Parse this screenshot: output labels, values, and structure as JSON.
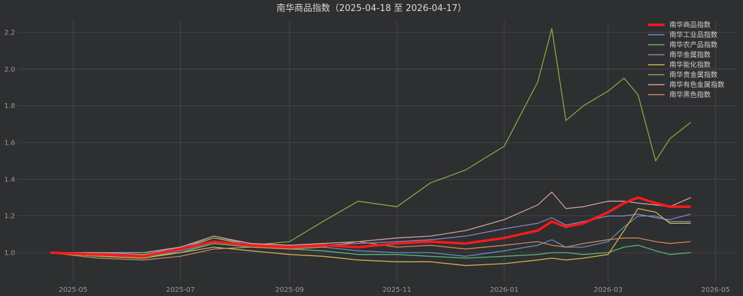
{
  "chart_data": {
    "type": "line",
    "title": "南华商品指数（2025-04-18 至 2026-04-17）",
    "xlabel": "",
    "ylabel": "",
    "ylim": [
      0.92,
      2.27
    ],
    "y_ticks": [
      "1.0",
      "1.2",
      "1.4",
      "1.6",
      "1.8",
      "2.0",
      "2.2"
    ],
    "x_ticks": [
      "2025-05",
      "2025-07",
      "2025-09",
      "2025-11",
      "2026-01",
      "2026-03",
      "2026-05"
    ],
    "grid": true,
    "legend_position": "upper right",
    "background": "#2e2f31",
    "x": [
      "2025-04-18",
      "2025-05-15",
      "2025-06-10",
      "2025-07-01",
      "2025-07-20",
      "2025-08-10",
      "2025-09-01",
      "2025-09-20",
      "2025-10-10",
      "2025-11-01",
      "2025-11-20",
      "2025-12-10",
      "2026-01-01",
      "2026-01-20",
      "2026-01-28",
      "2026-02-05",
      "2026-02-15",
      "2026-03-01",
      "2026-03-10",
      "2026-03-18",
      "2026-03-28",
      "2026-04-05",
      "2026-04-17"
    ],
    "series": [
      {
        "name": "南华商品指数",
        "color": "#ff1a1a",
        "width": 3.5,
        "values": [
          1.0,
          0.99,
          0.98,
          1.02,
          1.06,
          1.04,
          1.03,
          1.04,
          1.03,
          1.05,
          1.06,
          1.05,
          1.08,
          1.12,
          1.17,
          1.14,
          1.16,
          1.22,
          1.27,
          1.3,
          1.27,
          1.25,
          1.25
        ]
      },
      {
        "name": "南华工业品指数",
        "color": "#6b8fc4",
        "width": 1.3,
        "values": [
          1.0,
          0.98,
          0.97,
          1.01,
          1.05,
          1.03,
          1.02,
          1.03,
          1.01,
          1.0,
          1.0,
          0.98,
          1.01,
          1.04,
          1.07,
          1.03,
          1.03,
          1.06,
          1.14,
          1.2,
          1.2,
          1.17,
          1.17
        ]
      },
      {
        "name": "南华农产品指数",
        "color": "#5cb87a",
        "width": 1.3,
        "values": [
          1.0,
          0.99,
          0.98,
          1.0,
          1.05,
          1.03,
          1.02,
          1.01,
          0.99,
          0.99,
          0.98,
          0.97,
          0.98,
          0.99,
          1.0,
          1.0,
          0.99,
          1.0,
          1.03,
          1.04,
          1.01,
          0.99,
          1.0
        ]
      },
      {
        "name": "南华金属指数",
        "color": "#8a85c6",
        "width": 1.3,
        "values": [
          1.0,
          1.0,
          0.99,
          1.03,
          1.08,
          1.05,
          1.03,
          1.04,
          1.05,
          1.06,
          1.07,
          1.09,
          1.13,
          1.16,
          1.19,
          1.15,
          1.17,
          1.2,
          1.2,
          1.21,
          1.19,
          1.18,
          1.21
        ]
      },
      {
        "name": "南华能化指数",
        "color": "#d4b74c",
        "width": 1.3,
        "values": [
          1.0,
          0.98,
          0.97,
          1.0,
          1.03,
          1.01,
          0.99,
          0.98,
          0.96,
          0.95,
          0.95,
          0.93,
          0.94,
          0.96,
          0.97,
          0.96,
          0.97,
          0.99,
          1.12,
          1.24,
          1.22,
          1.16,
          1.16
        ]
      },
      {
        "name": "南华贵金属指数",
        "color": "#8bab47",
        "width": 1.3,
        "values": [
          1.0,
          0.98,
          0.99,
          1.02,
          1.08,
          1.04,
          1.06,
          1.17,
          1.28,
          1.25,
          1.38,
          1.45,
          1.58,
          1.93,
          2.22,
          1.72,
          1.8,
          1.88,
          1.95,
          1.86,
          1.5,
          1.62,
          1.71
        ]
      },
      {
        "name": "南华有色金属指数",
        "color": "#d9a3a3",
        "width": 1.3,
        "values": [
          1.0,
          1.0,
          1.0,
          1.03,
          1.09,
          1.05,
          1.04,
          1.05,
          1.06,
          1.08,
          1.09,
          1.12,
          1.18,
          1.26,
          1.33,
          1.24,
          1.25,
          1.28,
          1.28,
          1.27,
          1.26,
          1.25,
          1.3
        ]
      },
      {
        "name": "南华黑色指数",
        "color": "#d08a5e",
        "width": 1.3,
        "values": [
          1.0,
          0.97,
          0.96,
          0.98,
          1.02,
          1.03,
          1.02,
          1.03,
          1.06,
          1.03,
          1.04,
          1.02,
          1.04,
          1.06,
          1.04,
          1.03,
          1.05,
          1.07,
          1.08,
          1.08,
          1.06,
          1.05,
          1.06
        ]
      }
    ]
  },
  "legend": {
    "items": [
      "南华商品指数",
      "南华工业品指数",
      "南华农产品指数",
      "南华金属指数",
      "南华能化指数",
      "南华贵金属指数",
      "南华有色金属指数",
      "南华黑色指数"
    ]
  }
}
